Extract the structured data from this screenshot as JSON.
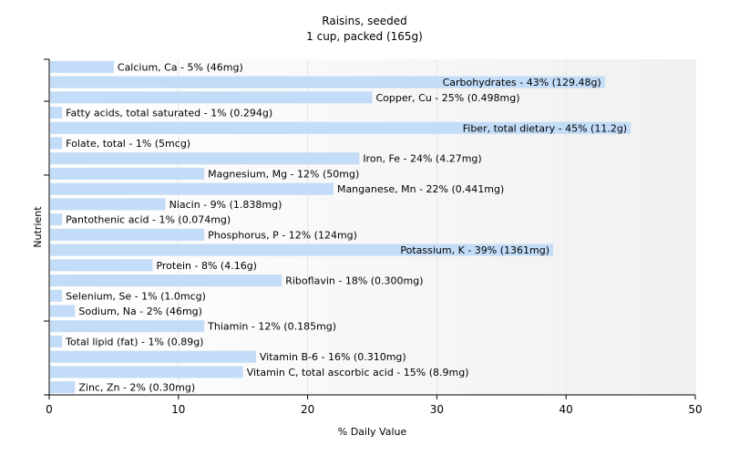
{
  "chart_data": {
    "type": "bar",
    "orientation": "horizontal",
    "title": "Raisins, seeded",
    "subtitle": "1 cup, packed (165g)",
    "xlabel": "% Daily Value",
    "ylabel": "Nutrient",
    "xlim": [
      0,
      50
    ],
    "xticks": [
      0,
      10,
      20,
      30,
      40,
      50
    ],
    "grid": true,
    "bar_color": "#c3dcf7",
    "categories": [
      "Calcium, Ca",
      "Carbohydrates",
      "Copper, Cu",
      "Fatty acids, total saturated",
      "Fiber, total dietary",
      "Folate, total",
      "Iron, Fe",
      "Magnesium, Mg",
      "Manganese, Mn",
      "Niacin",
      "Pantothenic acid",
      "Phosphorus, P",
      "Potassium, K",
      "Protein",
      "Riboflavin",
      "Selenium, Se",
      "Sodium, Na",
      "Thiamin",
      "Total lipid (fat)",
      "Vitamin B-6",
      "Vitamin C, total ascorbic acid",
      "Zinc, Zn"
    ],
    "values": [
      5,
      43,
      25,
      1,
      45,
      1,
      24,
      12,
      22,
      9,
      1,
      12,
      39,
      8,
      18,
      1,
      2,
      12,
      1,
      16,
      15,
      2
    ],
    "labels": [
      "Calcium, Ca - 5% (46mg)",
      "Carbohydrates - 43% (129.48g)",
      "Copper, Cu - 25% (0.498mg)",
      "Fatty acids, total saturated - 1% (0.294g)",
      "Fiber, total dietary - 45% (11.2g)",
      "Folate, total - 1% (5mcg)",
      "Iron, Fe - 24% (4.27mg)",
      "Magnesium, Mg - 12% (50mg)",
      "Manganese, Mn - 22% (0.441mg)",
      "Niacin - 9% (1.838mg)",
      "Pantothenic acid - 1% (0.074mg)",
      "Phosphorus, P - 12% (124mg)",
      "Potassium, K - 39% (1361mg)",
      "Protein - 8% (4.16g)",
      "Riboflavin - 18% (0.300mg)",
      "Selenium, Se - 1% (1.0mcg)",
      "Sodium, Na - 2% (46mg)",
      "Thiamin - 12% (0.185mg)",
      "Total lipid (fat) - 1% (0.89g)",
      "Vitamin B-6 - 16% (0.310mg)",
      "Vitamin C, total ascorbic acid - 15% (8.9mg)",
      "Zinc, Zn - 2% (0.30mg)"
    ]
  }
}
